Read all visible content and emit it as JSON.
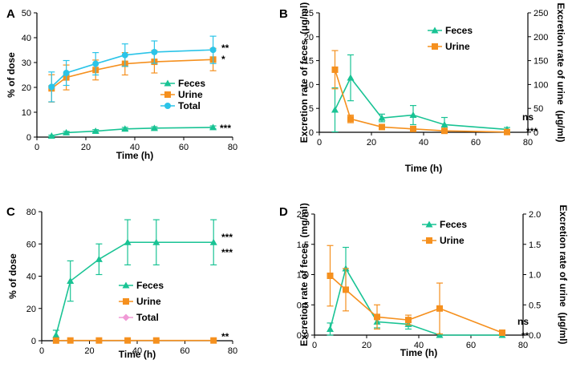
{
  "colors": {
    "feces": "#19c394",
    "urine": "#f5901e",
    "total": "#2bc4e8",
    "total_c": "#f09ad6",
    "axis": "#000000"
  },
  "chart_data": [
    {
      "label": "A",
      "type": "line",
      "xlabel": "Time (h)",
      "ylabel": "% of dose",
      "xlim": [
        0,
        80
      ],
      "ylim": [
        0,
        50
      ],
      "xticks": [
        0,
        20,
        40,
        60,
        80
      ],
      "yticks": [
        0,
        10,
        20,
        30,
        40,
        50
      ],
      "legend": [
        "Feces",
        "Urine",
        "Total"
      ],
      "series": [
        {
          "name": "Feces",
          "color_key": "feces",
          "marker": "triangle",
          "axis": "left",
          "x": [
            6,
            12,
            24,
            36,
            48,
            72
          ],
          "values": [
            0.5,
            1.8,
            2.4,
            3.3,
            3.6,
            3.9
          ],
          "err": [
            0.3,
            0.5,
            0.6,
            0.6,
            0.6,
            0.6
          ]
        },
        {
          "name": "Urine",
          "color_key": "urine",
          "marker": "square",
          "axis": "left",
          "x": [
            6,
            12,
            24,
            36,
            48,
            72
          ],
          "values": [
            19.6,
            24.0,
            27.0,
            29.5,
            30.3,
            31.2
          ],
          "err": [
            5.5,
            5.0,
            4.0,
            4.5,
            4.5,
            4.5
          ]
        },
        {
          "name": "Total",
          "color_key": "total",
          "marker": "circle",
          "axis": "left",
          "x": [
            6,
            12,
            24,
            36,
            48,
            72
          ],
          "values": [
            20.2,
            25.8,
            29.5,
            33.0,
            34.2,
            35.1
          ],
          "err": [
            6.0,
            5.0,
            4.5,
            4.5,
            4.5,
            5.5
          ]
        }
      ],
      "annotations": [
        "**",
        "*",
        "***"
      ]
    },
    {
      "label": "B",
      "type": "line",
      "xlabel": "Time (h)",
      "ylabel": "Excretion rate of feces  (μg/ml)",
      "y2label": "Excretion rate of urine  (μg/ml)",
      "xlim": [
        0,
        80
      ],
      "ylim": [
        0,
        25
      ],
      "y2lim": [
        0,
        250
      ],
      "xticks": [
        0,
        20,
        40,
        60,
        80
      ],
      "yticks": [
        0,
        5,
        10,
        15,
        20,
        25
      ],
      "y2ticks": [
        0,
        50,
        100,
        150,
        200,
        250
      ],
      "legend": [
        "Feces",
        "Urine"
      ],
      "series": [
        {
          "name": "Feces",
          "color_key": "feces",
          "marker": "triangle",
          "axis": "left",
          "x": [
            6,
            12,
            24,
            36,
            48,
            72
          ],
          "values": [
            4.7,
            11.4,
            3.0,
            3.6,
            1.6,
            0.6
          ],
          "err": [
            4.6,
            4.8,
            0.8,
            2.0,
            1.5,
            0.4
          ]
        },
        {
          "name": "Urine",
          "color_key": "urine",
          "marker": "square",
          "axis": "right",
          "x": [
            6,
            12,
            24,
            36,
            48,
            72
          ],
          "values": [
            131,
            28,
            11,
            7,
            3,
            0.5
          ],
          "err": [
            40,
            8,
            2,
            1.5,
            1,
            0.3
          ]
        }
      ],
      "annotations": [
        "ns",
        "***"
      ]
    },
    {
      "label": "C",
      "type": "line",
      "xlabel": "Time (h)",
      "ylabel": "% of dose",
      "xlim": [
        0,
        80
      ],
      "ylim": [
        0,
        80
      ],
      "xticks": [
        0,
        20,
        40,
        60,
        80
      ],
      "yticks": [
        0,
        20,
        40,
        60,
        80
      ],
      "legend": [
        "Feces",
        "Urine",
        "Total"
      ],
      "series": [
        {
          "name": "Feces",
          "color_key": "feces",
          "marker": "triangle",
          "axis": "left",
          "x": [
            6,
            12,
            24,
            36,
            48,
            72
          ],
          "values": [
            3.5,
            37,
            50.5,
            61,
            61,
            61
          ],
          "err": [
            3,
            12.5,
            9.5,
            14,
            14,
            14
          ]
        },
        {
          "name": "Urine",
          "color_key": "urine",
          "marker": "square",
          "axis": "left",
          "x": [
            6,
            12,
            24,
            36,
            48,
            72
          ],
          "values": [
            0.1,
            0.15,
            0.15,
            0.15,
            0.15,
            0.15
          ],
          "err": [
            0,
            0,
            0,
            0,
            0,
            0
          ]
        },
        {
          "name": "Total",
          "color_key": "total_c",
          "marker": "diamond",
          "axis": "left",
          "x": [
            6,
            12,
            24,
            36,
            48,
            72
          ],
          "values": [
            3.6,
            37.2,
            50.6,
            61.1,
            61.1,
            61.1
          ],
          "err": [
            0,
            0,
            0,
            0,
            0,
            0
          ],
          "hidden": true
        }
      ],
      "annotations": [
        "***",
        "***",
        "**"
      ]
    },
    {
      "label": "D",
      "type": "line",
      "xlabel": "Time (h)",
      "ylabel": "Excretion rate of feces  (mg/ml)",
      "y2label": "Excretion rate of urine  (μg/ml)",
      "xlim": [
        0,
        80
      ],
      "ylim": [
        0,
        2.0
      ],
      "y2lim": [
        0,
        2.0
      ],
      "xticks": [
        0,
        20,
        40,
        60,
        80
      ],
      "yticks": [
        "0.0",
        "0.5",
        "1.0",
        "1.5",
        "2.0"
      ],
      "y2ticks": [
        "0.0",
        "0.5",
        "1.0",
        "1.5",
        "2.0"
      ],
      "legend": [
        "Feces",
        "Urine"
      ],
      "series": [
        {
          "name": "Feces",
          "color_key": "feces",
          "marker": "triangle",
          "axis": "left",
          "x": [
            6,
            12,
            24,
            36,
            48,
            72
          ],
          "values": [
            0.1,
            1.1,
            0.22,
            0.18,
            0.0,
            0.0
          ],
          "err": [
            0.1,
            0.35,
            0.1,
            0.08,
            0.0,
            0.0
          ]
        },
        {
          "name": "Urine",
          "color_key": "urine",
          "marker": "square",
          "axis": "right",
          "x": [
            6,
            12,
            24,
            36,
            48,
            72
          ],
          "values": [
            0.98,
            0.75,
            0.3,
            0.25,
            0.44,
            0.04
          ],
          "err": [
            0.5,
            0.35,
            0.2,
            0.08,
            0.42,
            0.02
          ]
        }
      ],
      "annotations": [
        "ns",
        "**"
      ]
    }
  ]
}
